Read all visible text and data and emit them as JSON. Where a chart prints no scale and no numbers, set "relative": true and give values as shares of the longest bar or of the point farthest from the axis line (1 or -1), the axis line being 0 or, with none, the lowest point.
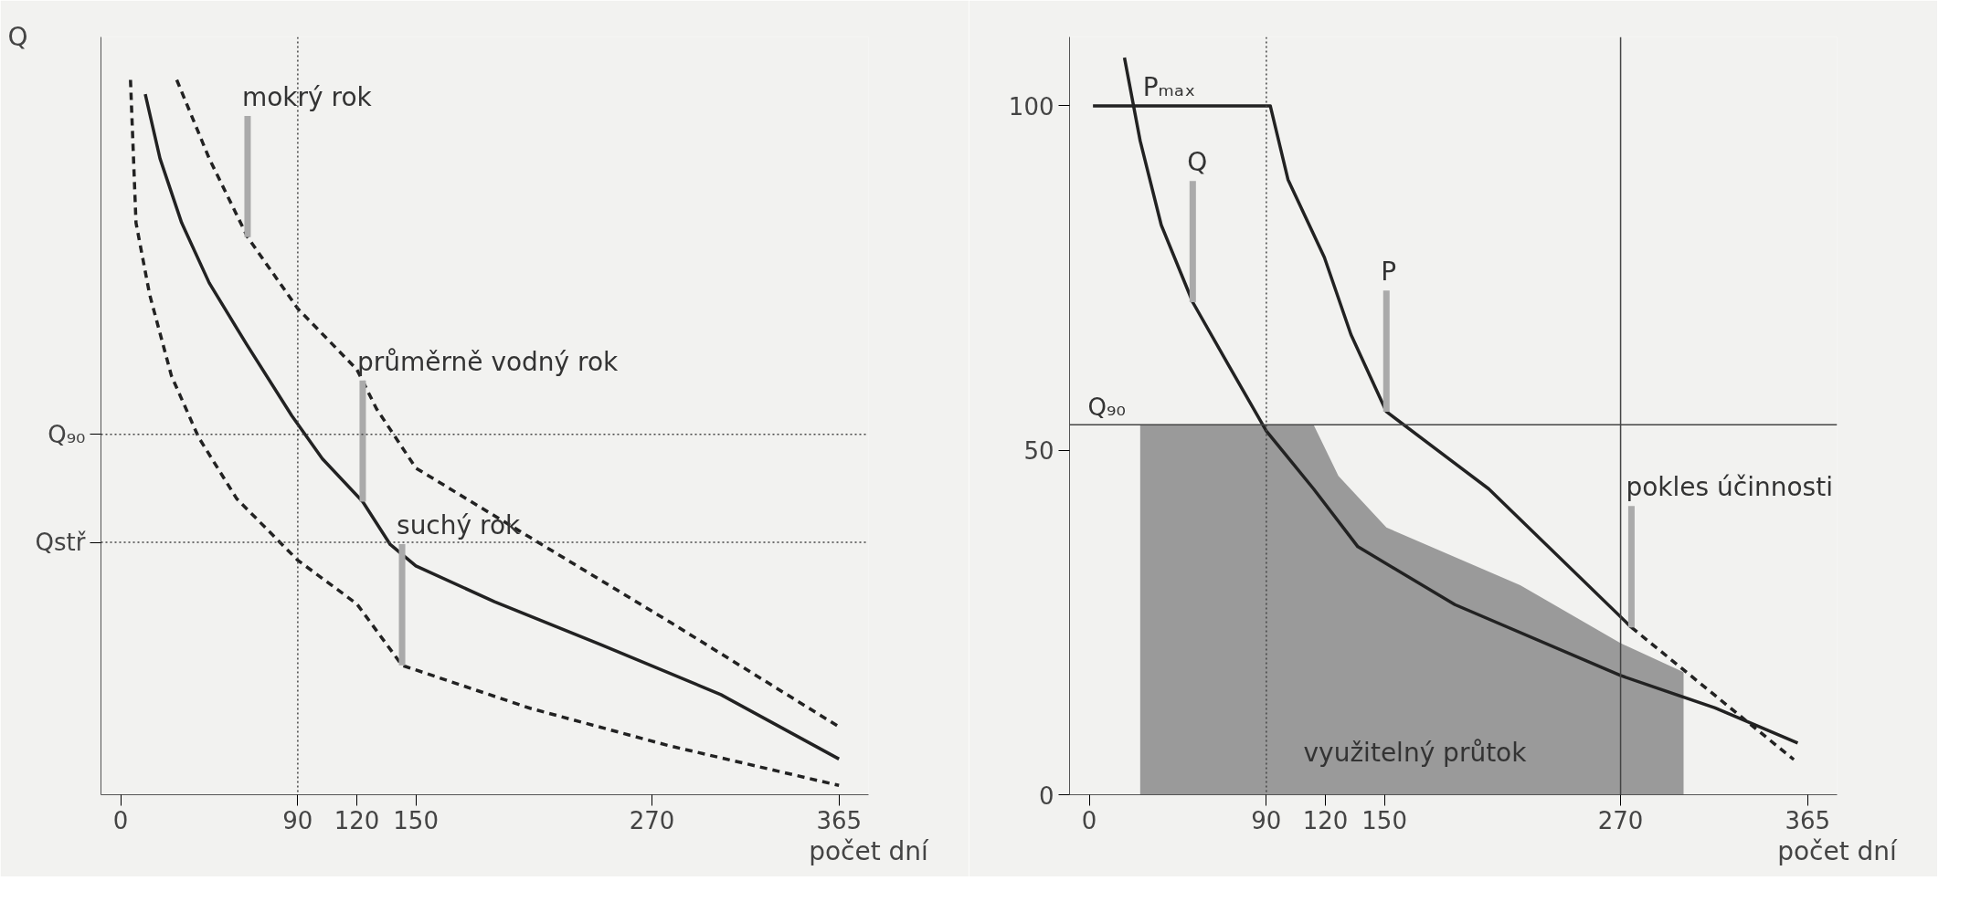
{
  "chart_data": [
    {
      "type": "line",
      "relative": true,
      "ylabel": "Q",
      "xlabel": "počet dní",
      "xlim": [
        -10,
        380
      ],
      "xticks": [
        0,
        90,
        120,
        150,
        270,
        365
      ],
      "series": [
        {
          "color": "#222222",
          "line_style": "dashed",
          "x": [
            28.5,
            45,
            64.5,
            90,
            120,
            130,
            150,
            208,
            280,
            365
          ],
          "values": [
            1.0,
            0.89,
            0.78,
            0.68,
            0.595,
            0.54,
            0.457,
            0.36,
            0.24,
            0.095
          ]
        },
        {
          "color": "#222222",
          "line_style": "solid",
          "x": [
            12.5,
            20,
            31,
            45,
            64,
            87,
            102.5,
            123,
            137,
            150,
            190,
            244,
            305,
            365
          ],
          "values": [
            0.98,
            0.89,
            0.8,
            0.716,
            0.63,
            0.53,
            0.47,
            0.41,
            0.35,
            0.32,
            0.27,
            0.21,
            0.14,
            0.05
          ]
        },
        {
          "color": "#222222",
          "line_style": "dashed",
          "x": [
            5,
            7.8,
            14.7,
            25.8,
            39.6,
            59,
            90,
            120,
            143,
            208,
            278,
            365
          ],
          "values": [
            1.0,
            0.8,
            0.7,
            0.586,
            0.5,
            0.414,
            0.328,
            0.267,
            0.181,
            0.121,
            0.069,
            0.013
          ]
        }
      ],
      "ref_lines": [
        {
          "axis": "y",
          "value": 0.504,
          "label": "Q₉₀",
          "line_style": "dotted",
          "color": "#444444"
        },
        {
          "axis": "y",
          "value": 0.353,
          "label": "Qstř",
          "line_style": "dotted",
          "color": "#444444"
        },
        {
          "axis": "x",
          "value": 90,
          "label": null,
          "line_style": "dotted",
          "color": "#444444"
        }
      ],
      "annotations": [
        {
          "text": "mokrý rok",
          "x": 64.5,
          "y": 0.78
        },
        {
          "text": "průměrně vodný rok",
          "x": 123,
          "y": 0.41
        },
        {
          "text": "suchý rok",
          "x": 143,
          "y": 0.181
        }
      ]
    },
    {
      "type": "line",
      "xlabel": "počet dní",
      "xlim": [
        -10,
        380
      ],
      "xticks": [
        0,
        90,
        120,
        150,
        270,
        365
      ],
      "ylim": [
        0,
        110
      ],
      "yticks": [
        0,
        50,
        100
      ],
      "series": [
        {
          "type": "area",
          "color": "#9a9a9a",
          "x": [
            25.9,
            114,
            126.6,
            151,
            219,
            270,
            302
          ],
          "values": [
            53.7,
            53.7,
            46.3,
            38.8,
            30.4,
            22,
            17.8
          ]
        },
        {
          "color": "#222222",
          "line_style": "solid",
          "x": [
            17.9,
            25.9,
            36.6,
            52.6,
            71.3,
            90,
            114,
            136.5,
            185.8,
            270,
            318,
            360
          ],
          "values": [
            107,
            94.9,
            82.7,
            71.5,
            62.1,
            52.8,
            44.4,
            36,
            27.6,
            17.3,
            12.6,
            7.5
          ]
        },
        {
          "color": "#222222",
          "line_style": "solid",
          "x": [
            1.9,
            92,
            101,
            119.5,
            133,
            151,
            203,
            275.5
          ],
          "values": [
            100,
            100,
            89.3,
            78,
            66.8,
            55.6,
            44.4,
            24.3
          ]
        },
        {
          "color": "#222222",
          "line_style": "dashed",
          "x": [
            275.5,
            358
          ],
          "values": [
            24.3,
            5.1
          ]
        }
      ],
      "ref_lines": [
        {
          "axis": "y",
          "value": 53.7,
          "label": "Q₉₀",
          "line_style": "solid",
          "color": "#444444"
        },
        {
          "axis": "x",
          "value": 90,
          "label": null,
          "line_style": "dotted",
          "color": "#444444"
        },
        {
          "axis": "x",
          "value": 270,
          "label": null,
          "line_style": "solid",
          "color": "#444444"
        }
      ],
      "annotations": [
        {
          "text": "Pₘₐₓ",
          "x": 30,
          "y": 100
        },
        {
          "text": "Q",
          "x": 52.6,
          "y": 71.5
        },
        {
          "text": "P",
          "x": 151,
          "y": 55.6
        },
        {
          "text": "pokles účinnosti",
          "x": 275.5,
          "y": 24.3
        },
        "využitelný průtok"
      ]
    }
  ]
}
